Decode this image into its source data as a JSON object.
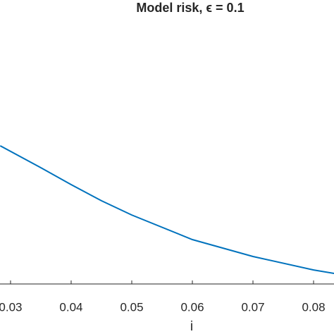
{
  "chart_data": {
    "type": "line",
    "title": "Model risk, ϵ = 0.1",
    "x_label": "i",
    "x": [
      0.0283,
      0.035,
      0.04,
      0.045,
      0.05,
      0.06,
      0.07,
      0.08,
      0.0834
    ],
    "series": [
      {
        "color": "#0072bd",
        "values": [
          0.523,
          0.44,
          0.376,
          0.315,
          0.261,
          0.168,
          0.104,
          0.053,
          0.04
        ]
      }
    ],
    "xlim": [
      0.02826,
      0.08337
    ],
    "ylim": [
      0,
      1
    ],
    "xticks": [
      0.03,
      0.04,
      0.05,
      0.06,
      0.07,
      0.08
    ]
  }
}
